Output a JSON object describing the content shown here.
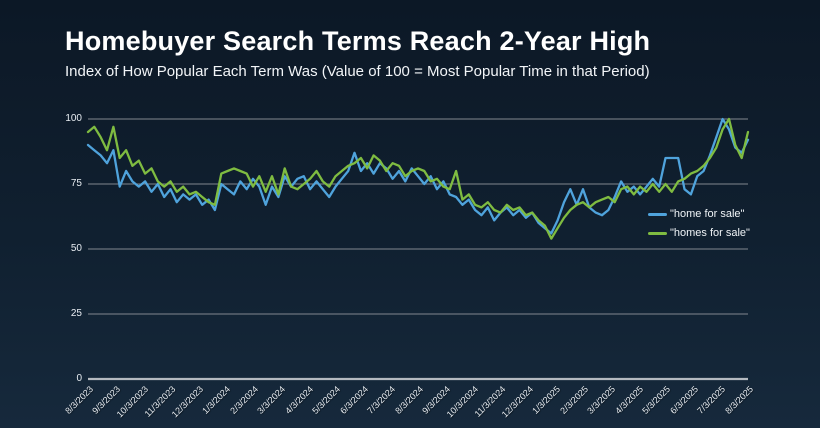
{
  "header": {
    "title": "Homebuyer Search Terms Reach 2-Year High",
    "subtitle": "Index of How Popular Each Term Was (Value of 100 = Most Popular Time in that Period)"
  },
  "colors": {
    "background_top": "#0c1826",
    "background_bottom": "#16293c",
    "gridline": "#81878f",
    "zero_axis_line": "#b5bac0",
    "text": "#ffffff",
    "blue_series": "#4FA3DC",
    "green_series": "#7FBC41"
  },
  "chart_data": {
    "type": "line",
    "title": "Homebuyer Search Terms Reach 2-Year High",
    "subtitle": "Index of How Popular Each Term Was (Value of 100 = Most Popular Time in that Period)",
    "xlabel": "",
    "ylabel": "",
    "x_cadence": "weekly points, monthly tick labels",
    "x_tick_labels": [
      "8/3/2023",
      "9/3/2023",
      "10/3/2023",
      "11/3/2023",
      "12/3/2023",
      "1/3/2024",
      "2/3/2024",
      "3/3/2024",
      "4/3/2024",
      "5/3/2024",
      "6/3/2024",
      "7/3/2024",
      "8/3/2024",
      "9/3/2024",
      "10/3/2024",
      "11/3/2024",
      "12/3/2024",
      "1/3/2025",
      "2/3/2025",
      "3/3/2025",
      "4/3/2025",
      "5/3/2025",
      "6/3/2025",
      "7/3/2025",
      "8/3/2025"
    ],
    "ylim": [
      0,
      100
    ],
    "yticks": [
      0,
      25,
      50,
      75,
      100
    ],
    "grid": true,
    "legend_position": "middle-right",
    "series": [
      {
        "name": "\"home for sale\"",
        "color": "#4FA3DC",
        "values": [
          90,
          88,
          86,
          83,
          88,
          74,
          80,
          76,
          74,
          76,
          72,
          75,
          70,
          73,
          68,
          71,
          69,
          71,
          67,
          69,
          65,
          75,
          73,
          71,
          76,
          73,
          77,
          74,
          67,
          74,
          70,
          78,
          74,
          77,
          78,
          73,
          76,
          73,
          70,
          74,
          77,
          80,
          87,
          80,
          83,
          79,
          83,
          81,
          77,
          80,
          76,
          81,
          78,
          75,
          78,
          73,
          76,
          71,
          70,
          67,
          69,
          65,
          63,
          66,
          61,
          64,
          66,
          63,
          65,
          62,
          64,
          60,
          58,
          56,
          61,
          68,
          73,
          67,
          73,
          66,
          64,
          63,
          65,
          70,
          76,
          72,
          74,
          71,
          74,
          77,
          74,
          85,
          85,
          85,
          73,
          71,
          78,
          80,
          86,
          93,
          100,
          96,
          89,
          87,
          92
        ]
      },
      {
        "name": "\"homes for sale\"",
        "color": "#7FBC41",
        "values": [
          95,
          97,
          93,
          88,
          97,
          85,
          88,
          82,
          84,
          79,
          81,
          76,
          74,
          76,
          72,
          74,
          71,
          72,
          70,
          68,
          67,
          79,
          80,
          81,
          80,
          79,
          74,
          78,
          72,
          78,
          71,
          81,
          74,
          73,
          75,
          77,
          80,
          76,
          74,
          78,
          80,
          82,
          83,
          85,
          81,
          86,
          84,
          80,
          83,
          82,
          78,
          80,
          81,
          80,
          76,
          77,
          74,
          73,
          80,
          69,
          71,
          67,
          66,
          68,
          65,
          64,
          67,
          65,
          66,
          63,
          64,
          61,
          59,
          54,
          58,
          62,
          65,
          67,
          68,
          66,
          68,
          69,
          70,
          68,
          73,
          74,
          71,
          74,
          72,
          75,
          72,
          75,
          72,
          76,
          77,
          79,
          80,
          82,
          85,
          89,
          96,
          100,
          90,
          85,
          95
        ]
      }
    ]
  }
}
